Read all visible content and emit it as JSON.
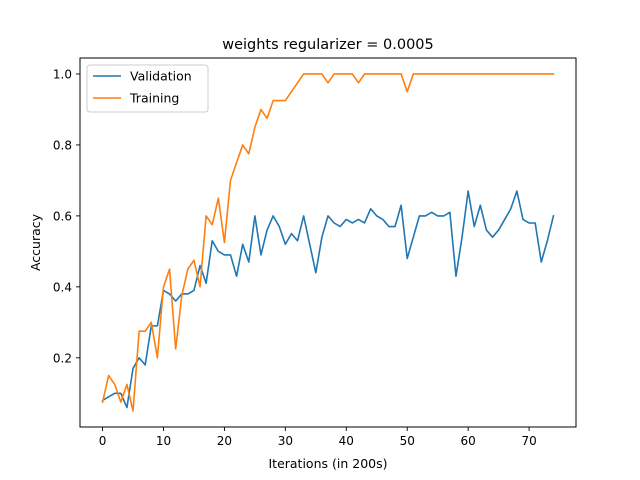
{
  "chart_data": {
    "type": "line",
    "title": "weights regularizer = 0.0005",
    "xlabel": "Iterations (in 200s)",
    "ylabel": "Accuracy",
    "xlim": [
      -3.7,
      77.7
    ],
    "ylim": [
      0.005,
      1.045
    ],
    "xticks": [
      0,
      10,
      20,
      30,
      40,
      50,
      60,
      70
    ],
    "yticks": [
      0.2,
      0.4,
      0.6,
      0.8,
      1.0
    ],
    "ytick_labels": [
      "0.2",
      "0.4",
      "0.6",
      "0.8",
      "1.0"
    ],
    "grid": false,
    "legend_position": "top-left",
    "series": [
      {
        "name": "Validation",
        "color": "#1f77b4",
        "x": [
          0,
          1,
          2,
          3,
          4,
          5,
          6,
          7,
          8,
          9,
          10,
          11,
          12,
          13,
          14,
          15,
          16,
          17,
          18,
          19,
          20,
          21,
          22,
          23,
          24,
          25,
          26,
          27,
          28,
          29,
          30,
          31,
          32,
          33,
          34,
          35,
          36,
          37,
          38,
          39,
          40,
          41,
          42,
          43,
          44,
          45,
          46,
          47,
          48,
          49,
          50,
          51,
          52,
          53,
          54,
          55,
          56,
          57,
          58,
          59,
          60,
          61,
          62,
          63,
          64,
          65,
          66,
          67,
          68,
          69,
          70,
          71,
          72,
          73,
          74
        ],
        "y": [
          0.08,
          0.09,
          0.1,
          0.1,
          0.06,
          0.17,
          0.2,
          0.18,
          0.29,
          0.29,
          0.39,
          0.38,
          0.36,
          0.38,
          0.38,
          0.39,
          0.46,
          0.41,
          0.53,
          0.5,
          0.49,
          0.49,
          0.43,
          0.52,
          0.47,
          0.6,
          0.49,
          0.56,
          0.6,
          0.57,
          0.52,
          0.55,
          0.53,
          0.6,
          0.52,
          0.44,
          0.54,
          0.6,
          0.58,
          0.57,
          0.59,
          0.58,
          0.59,
          0.58,
          0.62,
          0.6,
          0.59,
          0.57,
          0.57,
          0.63,
          0.48,
          0.54,
          0.6,
          0.6,
          0.61,
          0.6,
          0.6,
          0.61,
          0.43,
          0.54,
          0.67,
          0.57,
          0.63,
          0.56,
          0.54,
          0.56,
          0.59,
          0.62,
          0.67,
          0.59,
          0.58,
          0.58,
          0.47,
          0.53,
          0.6
        ]
      },
      {
        "name": "Training",
        "color": "#ff7f0e",
        "x": [
          0,
          1,
          2,
          3,
          4,
          5,
          6,
          7,
          8,
          9,
          10,
          11,
          12,
          13,
          14,
          15,
          16,
          17,
          18,
          19,
          20,
          21,
          22,
          23,
          24,
          25,
          26,
          27,
          28,
          29,
          30,
          31,
          32,
          33,
          34,
          35,
          36,
          37,
          38,
          39,
          40,
          41,
          42,
          43,
          44,
          45,
          46,
          47,
          48,
          49,
          50,
          51,
          52,
          53,
          54,
          55,
          56,
          57,
          58,
          59,
          60,
          61,
          62,
          63,
          64,
          65,
          66,
          67,
          68,
          69,
          70,
          71,
          72,
          73,
          74
        ],
        "y": [
          0.075,
          0.15,
          0.125,
          0.075,
          0.125,
          0.05,
          0.275,
          0.275,
          0.3,
          0.2,
          0.4,
          0.45,
          0.225,
          0.375,
          0.45,
          0.475,
          0.4,
          0.6,
          0.575,
          0.65,
          0.525,
          0.7,
          0.75,
          0.8,
          0.775,
          0.85,
          0.9,
          0.875,
          0.925,
          0.925,
          0.925,
          0.95,
          0.975,
          1.0,
          1.0,
          1.0,
          1.0,
          0.975,
          1.0,
          1.0,
          1.0,
          1.0,
          0.975,
          1.0,
          1.0,
          1.0,
          1.0,
          1.0,
          1.0,
          1.0,
          0.95,
          1.0,
          1.0,
          1.0,
          1.0,
          1.0,
          1.0,
          1.0,
          1.0,
          1.0,
          1.0,
          1.0,
          1.0,
          1.0,
          1.0,
          1.0,
          1.0,
          1.0,
          1.0,
          1.0,
          1.0,
          1.0,
          1.0,
          1.0,
          1.0
        ]
      }
    ]
  }
}
